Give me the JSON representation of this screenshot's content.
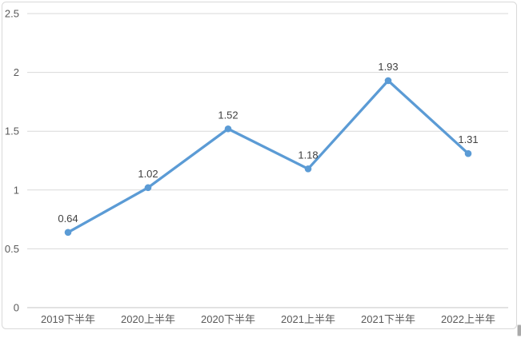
{
  "chart_data": {
    "type": "line",
    "title": "",
    "xlabel": "",
    "ylabel": "",
    "categories": [
      "2019下半年",
      "2020上半年",
      "2020下半年",
      "2021上半年",
      "2021下半年",
      "2022上半年"
    ],
    "values": [
      0.64,
      1.02,
      1.52,
      1.18,
      1.93,
      1.31
    ],
    "data_labels": [
      "0.64",
      "1.02",
      "1.52",
      "1.18",
      "1.93",
      "1.31"
    ],
    "ylim": [
      0,
      2.5
    ],
    "ytick_step": 0.5,
    "ytick_labels": [
      "0",
      "0.5",
      "1",
      "1.5",
      "2",
      "2.5"
    ],
    "grid": true,
    "legend": "none",
    "marker": "circle",
    "colors": {
      "line": "#5B9BD5",
      "marker": "#5B9BD5",
      "gridline": "#D9D9D9",
      "axis_line": "#C6C6C6",
      "tick_text": "#595959",
      "category_text": "#595959",
      "data_label_text": "#404040",
      "border": "#D9D9D9",
      "background": "#FFFFFF"
    }
  }
}
